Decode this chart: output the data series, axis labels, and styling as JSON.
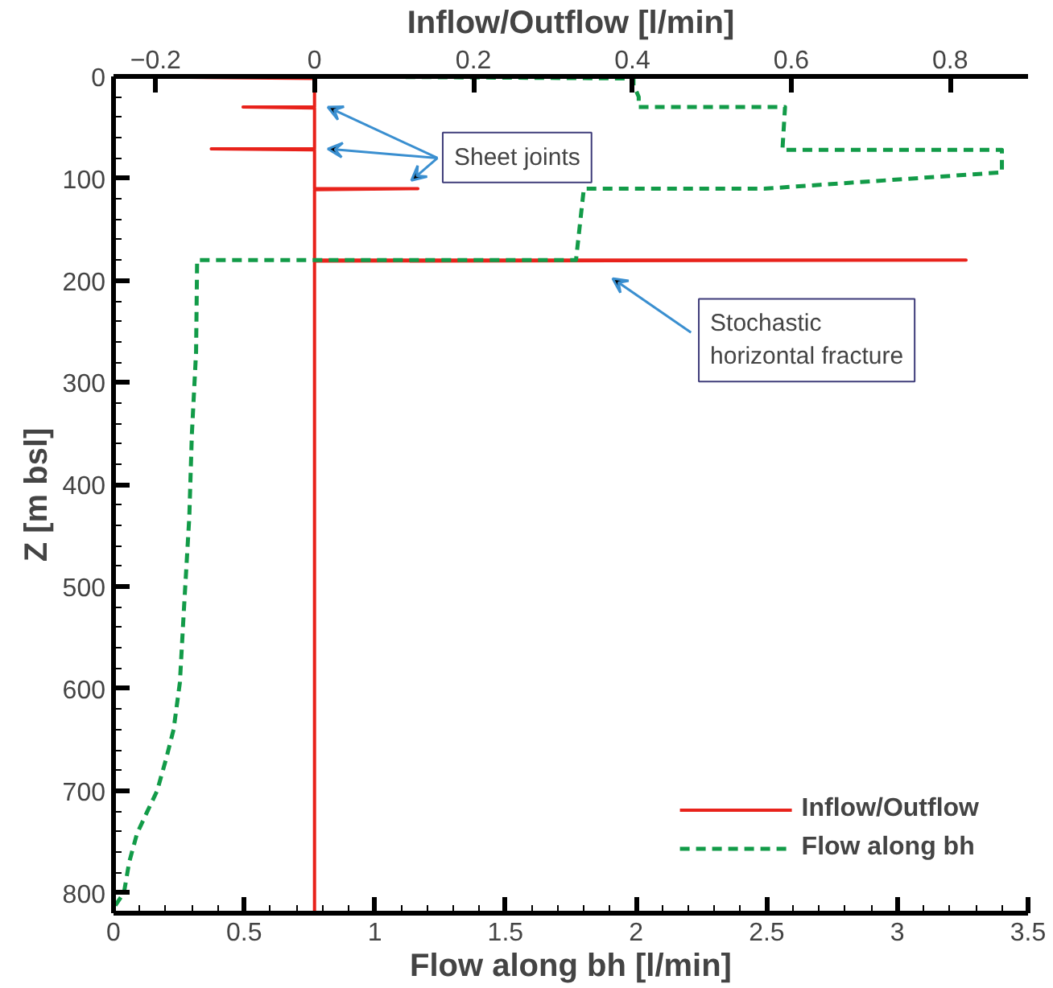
{
  "chart_data": {
    "type": "line",
    "xlabel": "Flow along bh [l/min]",
    "x2label": "Inflow/Outflow [l/min]",
    "ylabel": "Z [m bsl]",
    "xlim": [
      0,
      3.5
    ],
    "xticks": [
      0,
      0.5,
      1,
      1.5,
      2,
      2.5,
      3,
      3.5
    ],
    "x2lim": [
      -0.253,
      0.898
    ],
    "x2ticks": [
      -0.2,
      0,
      0.2,
      0.4,
      0.6,
      0.8
    ],
    "ylim": [
      820,
      0
    ],
    "yticks": [
      0,
      100,
      200,
      300,
      400,
      500,
      600,
      700,
      800
    ],
    "grid": false,
    "legend": "bottom right",
    "series": [
      {
        "name": "Inflow/Outflow",
        "color": "#e8221b",
        "axis": "x2",
        "line_style": "solid",
        "x": [
          -0.25,
          0,
          0,
          -0.09,
          0,
          0,
          -0.13,
          0,
          0,
          0.13,
          0,
          0,
          0.82,
          0,
          0
        ],
        "values": [
          0,
          2,
          30,
          30,
          31,
          71,
          71,
          72,
          110,
          110,
          111,
          180,
          180,
          181,
          820
        ]
      },
      {
        "name": "Flow along bh",
        "color": "#129b48",
        "line_style": "dashed",
        "x": [
          0.81,
          1.99,
          1.99,
          2.01,
          2.01,
          2.57,
          2.56,
          3.4,
          3.4,
          2.49,
          1.8,
          1.77,
          0.32,
          0.316,
          0.3,
          0.29,
          0.27,
          0.254,
          0.23,
          0.2,
          0.167,
          0.13,
          0.09,
          0.06,
          0.04,
          0
        ],
        "values": [
          0,
          2,
          8,
          20,
          30,
          30,
          72,
          72,
          94,
          110,
          110,
          180,
          180,
          270,
          350,
          432,
          520,
          594,
          640,
          670,
          700,
          720,
          742,
          770,
          800,
          815
        ]
      }
    ],
    "annotations": [
      "Sheet joints",
      "Stochastic\nhorizontal fracture"
    ]
  }
}
